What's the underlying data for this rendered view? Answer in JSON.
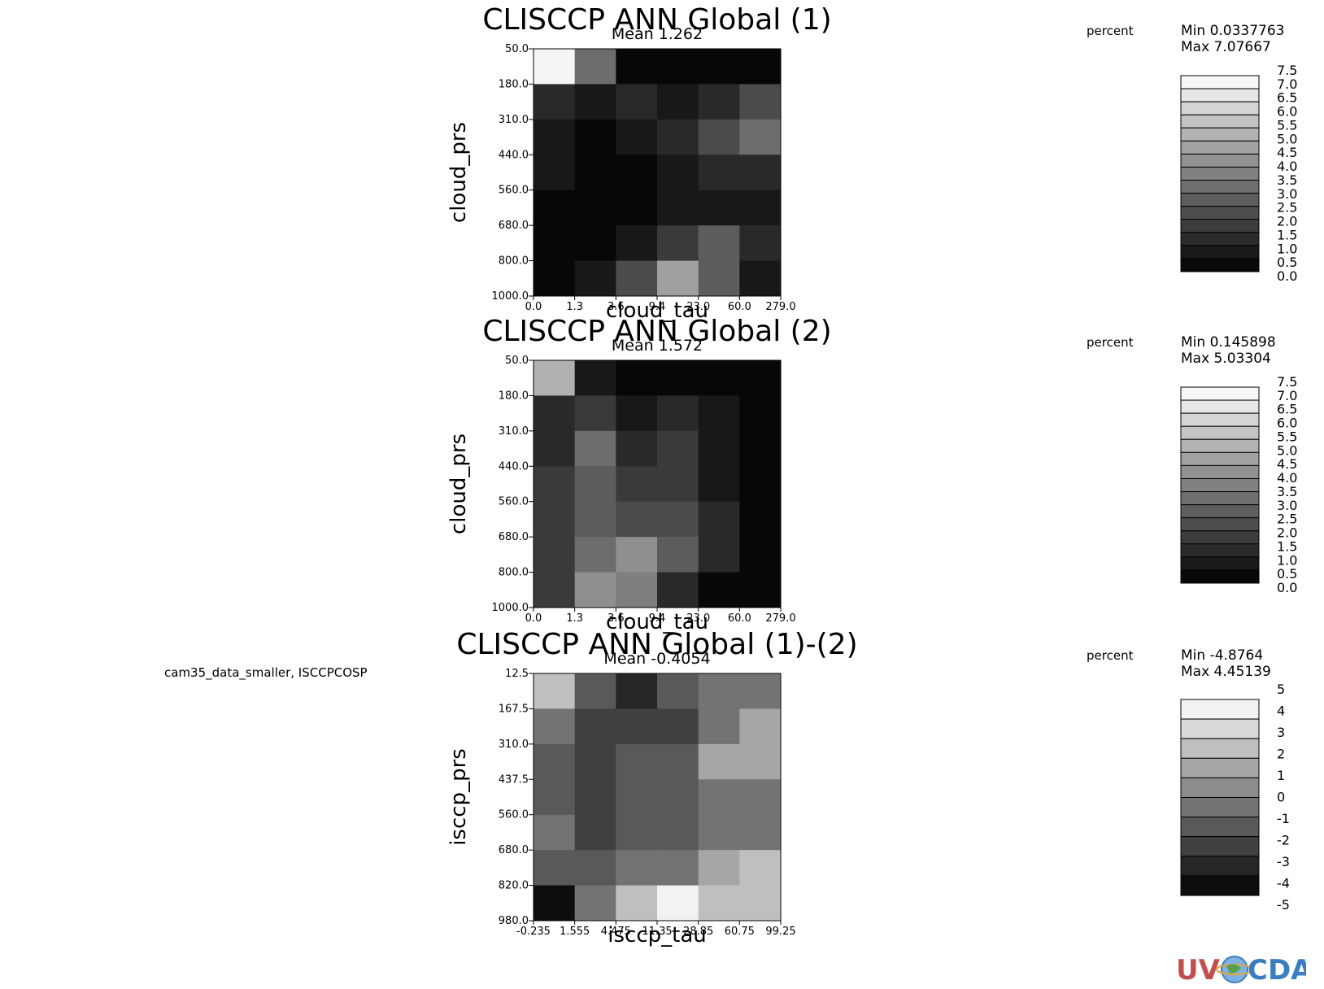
{
  "dataset_label": "cam35_data_smaller, ISCCPCOSP",
  "logo": {
    "letters_left": "UV",
    "letters_right": "CDAT"
  },
  "colors": {
    "background": "#ffffff",
    "text": "#000000",
    "logo_left": "#c0504d",
    "logo_right": "#3a7ec0"
  },
  "chart_data": [
    {
      "type": "heatmap",
      "title": "CLISCCP ANN Global (1)",
      "subtitle": "Mean 1.262",
      "xlabel": "cloud_tau",
      "ylabel": "cloud_prs",
      "units": "percent",
      "min_label": "Min 0.0337763",
      "max_label": "Max 7.07667",
      "x_ticks": [
        "0.0",
        "1.3",
        "3.6",
        "9.4",
        "23.0",
        "60.0",
        "279.0"
      ],
      "y_ticks": [
        "50.0",
        "180.0",
        "310.0",
        "440.0",
        "560.0",
        "680.0",
        "800.0",
        "1000.0"
      ],
      "colorbar_levels": [
        7.5,
        7.0,
        6.5,
        6.0,
        5.5,
        5.0,
        4.5,
        4.0,
        3.5,
        3.0,
        2.5,
        2.0,
        1.5,
        1.0,
        0.5,
        0.0
      ],
      "colorbar_labels": [
        "7.5",
        "7.0",
        "6.5",
        "6.0",
        "5.5",
        "5.0",
        "4.5",
        "4.0",
        "3.5",
        "3.0",
        "2.5",
        "2.0",
        "1.5",
        "1.0",
        "0.5",
        "0.0"
      ],
      "values": [
        [
          7.2,
          3.2,
          0.2,
          0.2,
          0.2,
          0.2
        ],
        [
          1.2,
          0.7,
          1.2,
          0.7,
          1.2,
          2.2
        ],
        [
          0.7,
          0.2,
          0.7,
          1.2,
          2.2,
          3.2
        ],
        [
          0.7,
          0.2,
          0.2,
          0.7,
          1.2,
          1.2
        ],
        [
          0.2,
          0.2,
          0.2,
          0.7,
          0.7,
          0.7
        ],
        [
          0.2,
          0.2,
          0.7,
          1.7,
          2.7,
          1.2
        ],
        [
          0.2,
          0.7,
          2.2,
          4.7,
          2.7,
          0.7
        ]
      ]
    },
    {
      "type": "heatmap",
      "title": "CLISCCP ANN Global (2)",
      "subtitle": "Mean 1.572",
      "xlabel": "cloud_tau",
      "ylabel": "cloud_prs",
      "units": "percent",
      "min_label": "Min 0.145898",
      "max_label": "Max 5.03304",
      "x_ticks": [
        "0.0",
        "1.3",
        "3.6",
        "9.4",
        "23.0",
        "60.0",
        "279.0"
      ],
      "y_ticks": [
        "50.0",
        "180.0",
        "310.0",
        "440.0",
        "560.0",
        "680.0",
        "800.0",
        "1000.0"
      ],
      "colorbar_levels": [
        7.5,
        7.0,
        6.5,
        6.0,
        5.5,
        5.0,
        4.5,
        4.0,
        3.5,
        3.0,
        2.5,
        2.0,
        1.5,
        1.0,
        0.5,
        0.0
      ],
      "colorbar_labels": [
        "7.5",
        "7.0",
        "6.5",
        "6.0",
        "5.5",
        "5.0",
        "4.5",
        "4.0",
        "3.5",
        "3.0",
        "2.5",
        "2.0",
        "1.5",
        "1.0",
        "0.5",
        "0.0"
      ],
      "values": [
        [
          5.2,
          0.7,
          0.2,
          0.2,
          0.2,
          0.2
        ],
        [
          1.2,
          1.7,
          0.7,
          1.2,
          0.7,
          0.2
        ],
        [
          1.2,
          3.2,
          1.2,
          1.7,
          0.7,
          0.2
        ],
        [
          1.7,
          2.7,
          1.7,
          1.7,
          0.7,
          0.2
        ],
        [
          1.7,
          2.7,
          2.2,
          2.2,
          1.2,
          0.2
        ],
        [
          1.7,
          3.2,
          4.2,
          2.7,
          1.2,
          0.2
        ],
        [
          1.7,
          4.2,
          3.7,
          1.2,
          0.2,
          0.2
        ]
      ]
    },
    {
      "type": "heatmap",
      "title": "CLISCCP ANN Global (1)-(2)",
      "subtitle": "Mean -0.4054",
      "xlabel": "isccp_tau",
      "ylabel": "isccp_prs",
      "units": "percent",
      "min_label": "Min -4.8764",
      "max_label": "Max 4.45139",
      "x_ticks": [
        "-0.235",
        "1.555",
        "4.475",
        "11.35",
        "28.85",
        "60.75",
        "99.25"
      ],
      "y_ticks": [
        "12.5",
        "167.5",
        "310.0",
        "437.5",
        "560.0",
        "680.0",
        "820.0",
        "980.0"
      ],
      "colorbar_levels": [
        5,
        4,
        3,
        2,
        1,
        0,
        -1,
        -2,
        -3,
        -4,
        -5
      ],
      "colorbar_labels": [
        "5",
        "4",
        "3",
        "2",
        "1",
        "0",
        "-1",
        "-2",
        "-3",
        "-4",
        "-5"
      ],
      "values": [
        [
          2.5,
          -1.5,
          -3.5,
          -1.5,
          -0.5,
          -0.5
        ],
        [
          -0.5,
          -2.5,
          -2.5,
          -2.5,
          -0.5,
          1.5
        ],
        [
          -1.5,
          -2.5,
          -1.5,
          -1.5,
          1.5,
          1.5
        ],
        [
          -1.5,
          -2.5,
          -1.5,
          -1.5,
          -0.5,
          -0.5
        ],
        [
          -0.5,
          -2.5,
          -1.5,
          -1.5,
          -0.5,
          -0.5
        ],
        [
          -1.5,
          -1.5,
          -0.5,
          -0.5,
          1.5,
          2.5
        ],
        [
          -4.5,
          -0.5,
          2.5,
          4.5,
          2.5,
          2.5
        ]
      ]
    }
  ]
}
